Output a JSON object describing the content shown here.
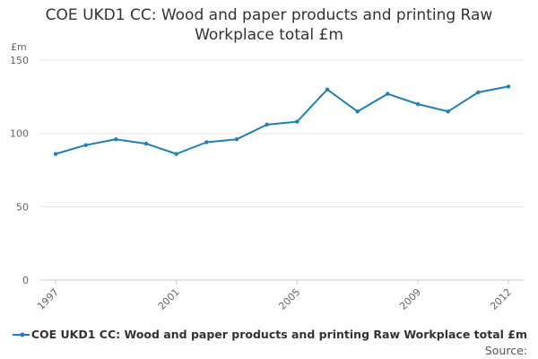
{
  "chart_data": {
    "type": "line",
    "title": "COE UKD1 CC: Wood and paper products and printing Raw Workplace total £m",
    "ylabel": "£m",
    "xlabel": "",
    "ylim": [
      0,
      150
    ],
    "yticks": [
      0,
      50,
      100,
      150
    ],
    "xlim": [
      1997,
      2012
    ],
    "xticks": [
      1997,
      2001,
      2005,
      2009,
      2012
    ],
    "grid": true,
    "legend_position": "bottom",
    "colors": {
      "series": "#1f7fb8",
      "grid": "#e6e6e6",
      "axis": "#cccccc"
    },
    "series": [
      {
        "name": "COE UKD1 CC: Wood and paper products and printing Raw Workplace total £m",
        "x": [
          1997,
          1998,
          1999,
          2000,
          2001,
          2002,
          2003,
          2004,
          2005,
          2006,
          2007,
          2008,
          2009,
          2010,
          2011,
          2012
        ],
        "values": [
          86,
          92,
          96,
          93,
          86,
          94,
          96,
          106,
          108,
          130,
          115,
          127,
          120,
          115,
          128,
          132
        ]
      }
    ]
  },
  "source_label": "Source:"
}
